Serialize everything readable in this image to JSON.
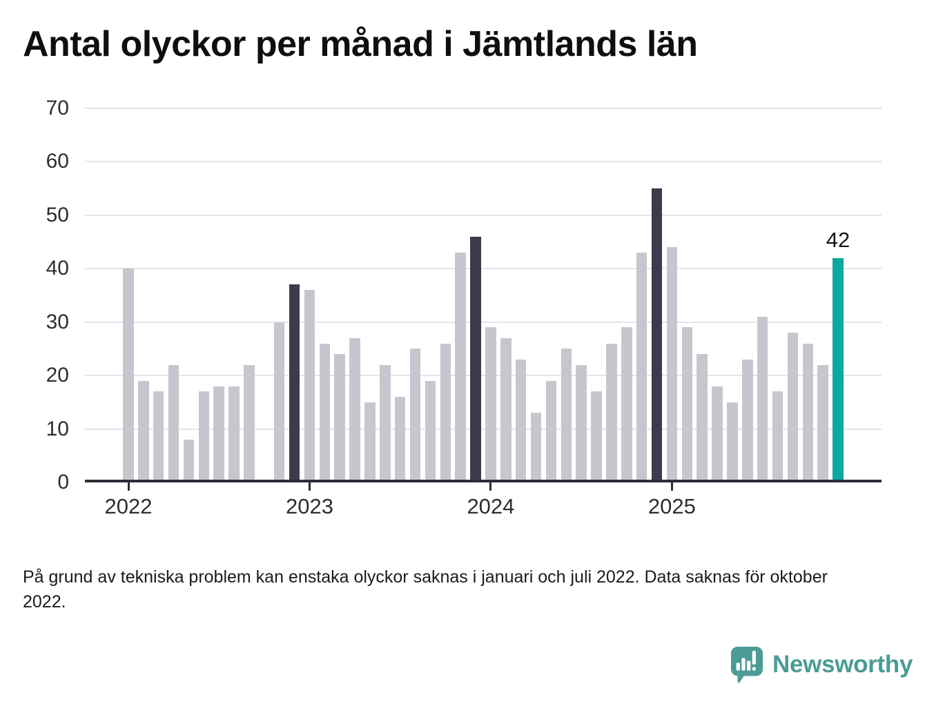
{
  "title": "Antal olyckor per månad i Jämtlands län",
  "footnote": "På grund av tekniska problem kan enstaka olyckor saknas i januari och juli 2022. Data saknas för oktober 2022.",
  "logo": {
    "text": "Newsworthy",
    "color": "#4a9c95",
    "icon": "speech-bubble-bar-chart-icon"
  },
  "chart_data": {
    "type": "bar",
    "title": "Antal olyckor per månad i Jämtlands län",
    "xlabel": "",
    "ylabel": "",
    "ylim": [
      0,
      70
    ],
    "yticks": [
      0,
      10,
      20,
      30,
      40,
      50,
      60,
      70
    ],
    "grid": "horizontal",
    "legend": "none",
    "year_ticks": [
      "2022",
      "2023",
      "2024",
      "2025"
    ],
    "colors": {
      "default": "#c7c6ce",
      "dark": "#3c3b4b",
      "highlight": "#0aa8a0",
      "grid": "#e4e3e9",
      "axis": "#2e2d37"
    },
    "color_legend_meaning": {
      "dark": "december tidigare år",
      "highlight": "senaste månaden"
    },
    "value_label": {
      "text": "42",
      "month": "2025-12"
    },
    "months": [
      {
        "month": "2022-01",
        "value": 40
      },
      {
        "month": "2022-02",
        "value": 19
      },
      {
        "month": "2022-03",
        "value": 17
      },
      {
        "month": "2022-04",
        "value": 22
      },
      {
        "month": "2022-05",
        "value": 8
      },
      {
        "month": "2022-06",
        "value": 17
      },
      {
        "month": "2022-07",
        "value": 18
      },
      {
        "month": "2022-08",
        "value": 18
      },
      {
        "month": "2022-09",
        "value": 22
      },
      {
        "month": "2022-10",
        "value": null
      },
      {
        "month": "2022-11",
        "value": 30
      },
      {
        "month": "2022-12",
        "value": 37,
        "color": "dark"
      },
      {
        "month": "2023-01",
        "value": 36
      },
      {
        "month": "2023-02",
        "value": 26
      },
      {
        "month": "2023-03",
        "value": 24
      },
      {
        "month": "2023-04",
        "value": 27
      },
      {
        "month": "2023-05",
        "value": 15
      },
      {
        "month": "2023-06",
        "value": 22
      },
      {
        "month": "2023-07",
        "value": 16
      },
      {
        "month": "2023-08",
        "value": 25
      },
      {
        "month": "2023-09",
        "value": 19
      },
      {
        "month": "2023-10",
        "value": 26
      },
      {
        "month": "2023-11",
        "value": 43
      },
      {
        "month": "2023-12",
        "value": 46,
        "color": "dark"
      },
      {
        "month": "2024-01",
        "value": 29
      },
      {
        "month": "2024-02",
        "value": 27
      },
      {
        "month": "2024-03",
        "value": 23
      },
      {
        "month": "2024-04",
        "value": 13
      },
      {
        "month": "2024-05",
        "value": 19
      },
      {
        "month": "2024-06",
        "value": 25
      },
      {
        "month": "2024-07",
        "value": 22
      },
      {
        "month": "2024-08",
        "value": 17
      },
      {
        "month": "2024-09",
        "value": 26
      },
      {
        "month": "2024-10",
        "value": 29
      },
      {
        "month": "2024-11",
        "value": 43
      },
      {
        "month": "2024-12",
        "value": 55,
        "color": "dark"
      },
      {
        "month": "2025-01",
        "value": 44
      },
      {
        "month": "2025-02",
        "value": 29
      },
      {
        "month": "2025-03",
        "value": 24
      },
      {
        "month": "2025-04",
        "value": 18
      },
      {
        "month": "2025-05",
        "value": 15
      },
      {
        "month": "2025-06",
        "value": 23
      },
      {
        "month": "2025-07",
        "value": 31
      },
      {
        "month": "2025-08",
        "value": 17
      },
      {
        "month": "2025-09",
        "value": 28
      },
      {
        "month": "2025-10",
        "value": 26
      },
      {
        "month": "2025-11",
        "value": 22
      },
      {
        "month": "2025-12",
        "value": 42,
        "color": "highlight"
      }
    ]
  }
}
